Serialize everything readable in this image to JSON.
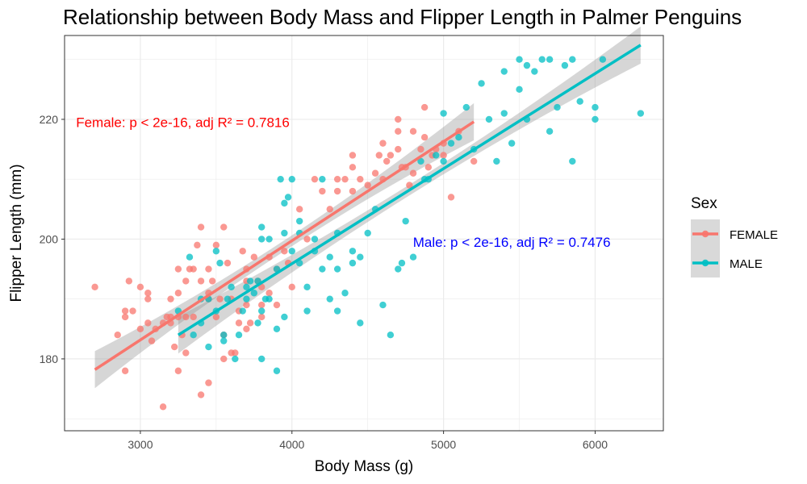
{
  "chart_data": {
    "type": "scatter",
    "title": "Relationship between Body Mass and Flipper Length in Palmer Penguins",
    "xlabel": "Body Mass (g)",
    "ylabel": "Flipper Length (mm)",
    "xlim": [
      2500,
      6450
    ],
    "ylim": [
      168,
      234
    ],
    "x_ticks": [
      3000,
      4000,
      5000,
      6000
    ],
    "y_ticks": [
      180,
      200,
      220
    ],
    "x_tick_labels": [
      "3000",
      "4000",
      "5000",
      "6000"
    ],
    "y_tick_labels": [
      "180",
      "200",
      "220"
    ],
    "grid": true,
    "legend": {
      "title": "Sex",
      "position": "right",
      "entries": [
        "FEMALE",
        "MALE"
      ]
    },
    "annotations": [
      {
        "text": "Female: p < 2e-16, adj R² = 0.7816",
        "x": 3280,
        "y": 219.5,
        "color": "#ff0000"
      },
      {
        "text": "Male: p < 2e-16, adj R² = 0.7476",
        "x": 5450,
        "y": 199.5,
        "color": "#0000ff"
      }
    ],
    "series": [
      {
        "name": "FEMALE",
        "color": "#f8766d",
        "fit": {
          "x": [
            2700,
            5200
          ],
          "y": [
            178.2,
            219.6
          ]
        },
        "points": [
          [
            2700,
            192
          ],
          [
            2850,
            184
          ],
          [
            2900,
            178
          ],
          [
            2900,
            187
          ],
          [
            2900,
            188
          ],
          [
            2925,
            193
          ],
          [
            2950,
            188
          ],
          [
            3000,
            185
          ],
          [
            3000,
            192
          ],
          [
            3050,
            190
          ],
          [
            3050,
            191
          ],
          [
            3050,
            186
          ],
          [
            3075,
            183
          ],
          [
            3100,
            185
          ],
          [
            3150,
            172
          ],
          [
            3150,
            186
          ],
          [
            3175,
            187
          ],
          [
            3200,
            186
          ],
          [
            3200,
            190
          ],
          [
            3200,
            187
          ],
          [
            3225,
            182
          ],
          [
            3250,
            178
          ],
          [
            3250,
            187
          ],
          [
            3250,
            191
          ],
          [
            3250,
            195
          ],
          [
            3275,
            184
          ],
          [
            3300,
            187
          ],
          [
            3300,
            193
          ],
          [
            3300,
            181
          ],
          [
            3325,
            195
          ],
          [
            3350,
            195
          ],
          [
            3350,
            187
          ],
          [
            3375,
            199
          ],
          [
            3400,
            193
          ],
          [
            3400,
            202
          ],
          [
            3400,
            174
          ],
          [
            3450,
            176
          ],
          [
            3450,
            195
          ],
          [
            3450,
            191
          ],
          [
            3450,
            190
          ],
          [
            3475,
            193
          ],
          [
            3500,
            187
          ],
          [
            3500,
            199
          ],
          [
            3525,
            190
          ],
          [
            3550,
            202
          ],
          [
            3550,
            180
          ],
          [
            3550,
            184
          ],
          [
            3575,
            196
          ],
          [
            3600,
            181
          ],
          [
            3600,
            190
          ],
          [
            3625,
            181
          ],
          [
            3650,
            188
          ],
          [
            3650,
            186
          ],
          [
            3675,
            198
          ],
          [
            3700,
            185
          ],
          [
            3700,
            193
          ],
          [
            3700,
            189
          ],
          [
            3700,
            195
          ],
          [
            3725,
            186
          ],
          [
            3750,
            197
          ],
          [
            3775,
            193
          ],
          [
            3800,
            187
          ],
          [
            3800,
            192
          ],
          [
            3800,
            189
          ],
          [
            3850,
            191
          ],
          [
            3850,
            197
          ],
          [
            3900,
            195
          ],
          [
            3900,
            189
          ],
          [
            3950,
            198
          ],
          [
            3975,
            196
          ],
          [
            4000,
            192
          ],
          [
            4050,
            205
          ],
          [
            4100,
            200
          ],
          [
            4150,
            210
          ],
          [
            4200,
            208
          ],
          [
            4250,
            205
          ],
          [
            4300,
            210
          ],
          [
            4300,
            208
          ],
          [
            4350,
            210
          ],
          [
            4400,
            208
          ],
          [
            4400,
            212
          ],
          [
            4400,
            214
          ],
          [
            4450,
            210
          ],
          [
            4500,
            209
          ],
          [
            4550,
            211
          ],
          [
            4575,
            214
          ],
          [
            4600,
            216
          ],
          [
            4600,
            210
          ],
          [
            4625,
            213
          ],
          [
            4650,
            214
          ],
          [
            4700,
            220
          ],
          [
            4700,
            218
          ],
          [
            4700,
            215
          ],
          [
            4725,
            212
          ],
          [
            4750,
            212
          ],
          [
            4775,
            209
          ],
          [
            4800,
            218
          ],
          [
            4800,
            211
          ],
          [
            4850,
            215
          ],
          [
            4875,
            222
          ],
          [
            4875,
            217
          ],
          [
            4900,
            212
          ],
          [
            4925,
            214
          ],
          [
            4950,
            215
          ],
          [
            5000,
            214
          ],
          [
            5000,
            216
          ],
          [
            5050,
            207
          ],
          [
            5100,
            218
          ],
          [
            5200,
            213
          ]
        ]
      },
      {
        "name": "MALE",
        "color": "#00bfc4",
        "fit": {
          "x": [
            3250,
            6300
          ],
          "y": [
            184.0,
            232.4
          ]
        },
        "points": [
          [
            3250,
            188
          ],
          [
            3325,
            197
          ],
          [
            3350,
            184
          ],
          [
            3400,
            190
          ],
          [
            3400,
            186
          ],
          [
            3450,
            182
          ],
          [
            3450,
            190
          ],
          [
            3500,
            188
          ],
          [
            3500,
            198
          ],
          [
            3525,
            196
          ],
          [
            3550,
            183
          ],
          [
            3550,
            184
          ],
          [
            3575,
            190
          ],
          [
            3600,
            192
          ],
          [
            3625,
            180
          ],
          [
            3650,
            184
          ],
          [
            3675,
            188
          ],
          [
            3700,
            192
          ],
          [
            3700,
            190
          ],
          [
            3725,
            193
          ],
          [
            3750,
            191
          ],
          [
            3775,
            193
          ],
          [
            3775,
            186
          ],
          [
            3800,
            188
          ],
          [
            3800,
            200
          ],
          [
            3800,
            180
          ],
          [
            3800,
            202
          ],
          [
            3825,
            190
          ],
          [
            3850,
            190
          ],
          [
            3850,
            200
          ],
          [
            3900,
            185
          ],
          [
            3900,
            195
          ],
          [
            3900,
            178
          ],
          [
            3925,
            210
          ],
          [
            3950,
            201
          ],
          [
            3950,
            187
          ],
          [
            3950,
            206
          ],
          [
            3975,
            207
          ],
          [
            4000,
            198
          ],
          [
            4000,
            210
          ],
          [
            4050,
            196
          ],
          [
            4050,
            201
          ],
          [
            4050,
            203
          ],
          [
            4100,
            188
          ],
          [
            4100,
            192
          ],
          [
            4150,
            200
          ],
          [
            4150,
            198
          ],
          [
            4200,
            195
          ],
          [
            4200,
            210
          ],
          [
            4250,
            190
          ],
          [
            4250,
            197
          ],
          [
            4300,
            201
          ],
          [
            4300,
            195
          ],
          [
            4300,
            188
          ],
          [
            4350,
            191
          ],
          [
            4400,
            196
          ],
          [
            4400,
            198
          ],
          [
            4450,
            186
          ],
          [
            4450,
            197
          ],
          [
            4500,
            201
          ],
          [
            4550,
            205
          ],
          [
            4600,
            189
          ],
          [
            4650,
            184
          ],
          [
            4700,
            195
          ],
          [
            4725,
            196
          ],
          [
            4750,
            203
          ],
          [
            4800,
            197
          ],
          [
            4850,
            213
          ],
          [
            4875,
            210
          ],
          [
            4900,
            210
          ],
          [
            4950,
            214
          ],
          [
            5000,
            221
          ],
          [
            5000,
            213
          ],
          [
            5050,
            216
          ],
          [
            5100,
            217
          ],
          [
            5150,
            222
          ],
          [
            5200,
            215
          ],
          [
            5250,
            226
          ],
          [
            5300,
            220
          ],
          [
            5350,
            213
          ],
          [
            5400,
            221
          ],
          [
            5400,
            228
          ],
          [
            5450,
            216
          ],
          [
            5500,
            225
          ],
          [
            5500,
            230
          ],
          [
            5550,
            220
          ],
          [
            5550,
            229
          ],
          [
            5600,
            228
          ],
          [
            5650,
            230
          ],
          [
            5700,
            218
          ],
          [
            5700,
            230
          ],
          [
            5750,
            222
          ],
          [
            5800,
            229
          ],
          [
            5850,
            213
          ],
          [
            5850,
            230
          ],
          [
            5900,
            223
          ],
          [
            6000,
            220
          ],
          [
            6000,
            222
          ],
          [
            6050,
            230
          ],
          [
            6300,
            221
          ]
        ]
      }
    ]
  }
}
